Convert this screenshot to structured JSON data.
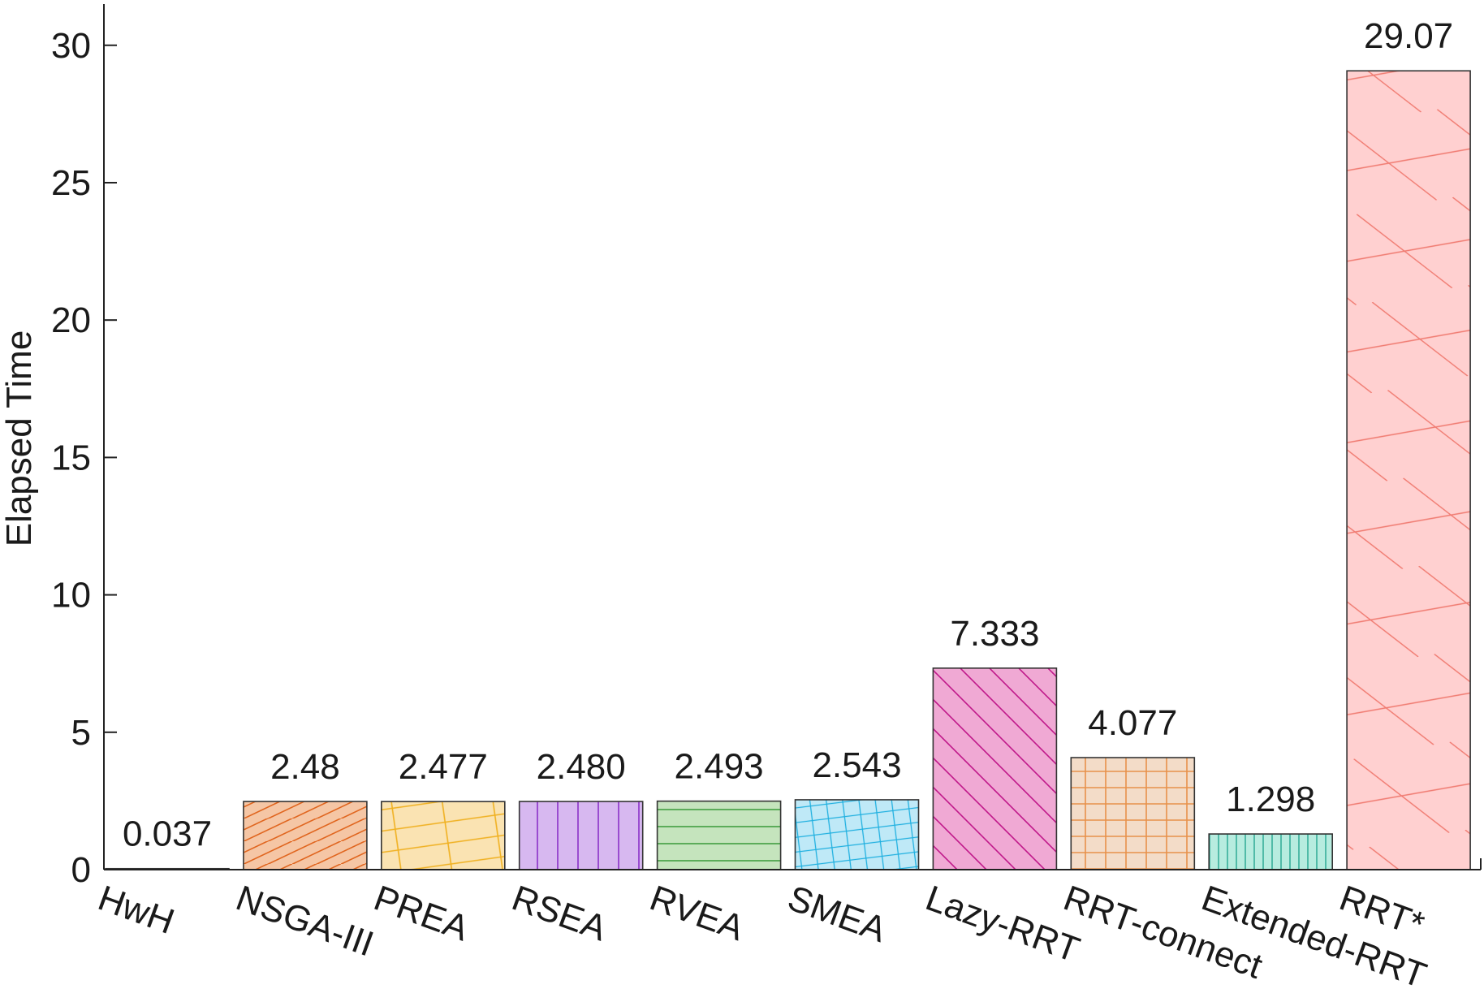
{
  "chart_data": {
    "type": "bar",
    "title": "",
    "xlabel": "",
    "ylabel": "Elapsed Time",
    "ylim": [
      0,
      31.5
    ],
    "yticks": [
      0,
      5,
      10,
      15,
      20,
      25,
      30
    ],
    "grid": false,
    "legend": "none",
    "categories": [
      "HwH",
      "NSGA-III",
      "PREA",
      "RSEA",
      "RVEA",
      "SMEA",
      "Lazy-RRT",
      "RRT-connect",
      "Extended-RRT",
      "RRT*"
    ],
    "values": [
      0.037,
      2.48,
      2.477,
      2.48,
      2.493,
      2.543,
      7.333,
      4.077,
      1.298,
      29.07
    ],
    "data_labels": [
      "0.037",
      "2.48",
      "2.477",
      "2.480",
      "2.493",
      "2.543",
      "7.333",
      "4.077",
      "1.298",
      "29.07"
    ],
    "bar_fill_colors": [
      "#ffffff",
      "#f5c6a5",
      "#fae3b2",
      "#d7b8f0",
      "#c5e4bd",
      "#bfe9f7",
      "#f0a9d4",
      "#f3dcc8",
      "#b7ecdf",
      "#ffd0d0"
    ],
    "bar_pattern_colors": [
      "#333333",
      "#e0651e",
      "#f0b020",
      "#8a30c8",
      "#3a9a3a",
      "#20b0e0",
      "#c0188a",
      "#e8914a",
      "#1aa08a",
      "#f07a70"
    ],
    "bar_patterns": [
      "none",
      "diagonal-up",
      "grid-skewed",
      "vertical",
      "horizontal",
      "grid-fine-skewed",
      "diagonal-down",
      "grid",
      "vertical-fine",
      "grid-wide-skewed"
    ]
  }
}
